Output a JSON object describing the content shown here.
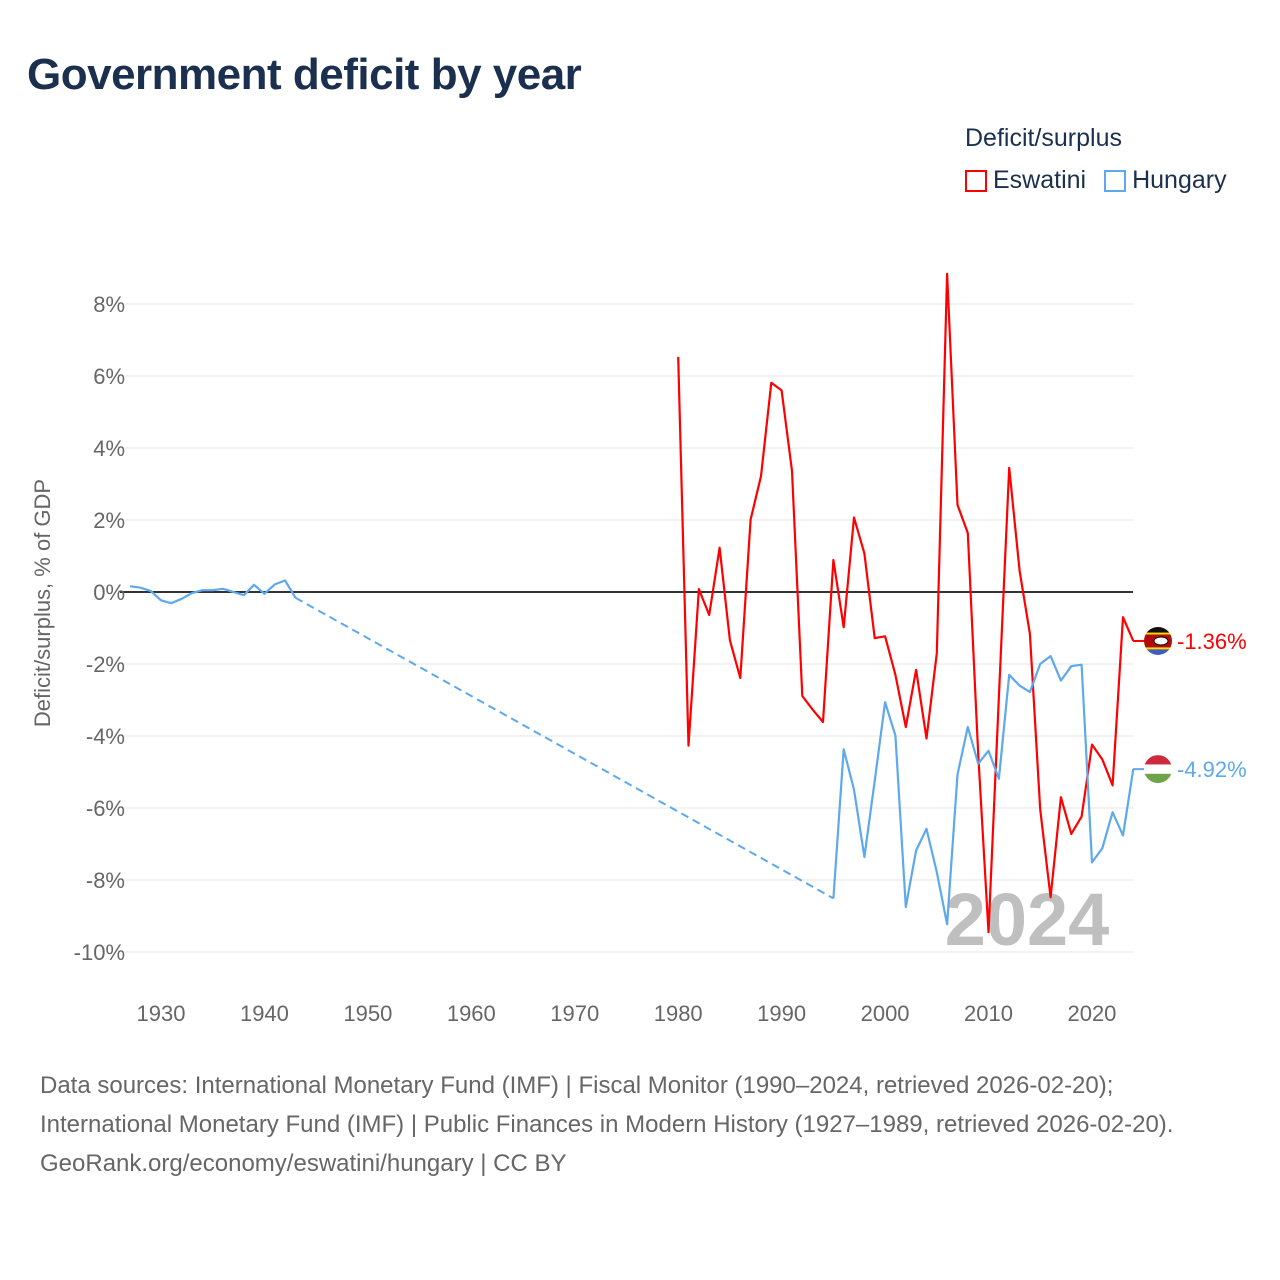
{
  "title": "Government deficit by year",
  "legend": {
    "title": "Deficit/surplus",
    "items": [
      {
        "name": "Eswatini",
        "color": "#ff0000"
      },
      {
        "name": "Hungary",
        "color": "#5ea8ee"
      }
    ]
  },
  "footer": {
    "sources": "Data sources: International Monetary Fund (IMF) | Fiscal Monitor (1990–2024, retrieved 2026-02-20); International Monetary Fund (IMF) | Public Finances in Modern History (1927–1989, retrieved 2026-02-20).",
    "link": "GeoRank.org/economy/eswatini/hungary | CC BY"
  },
  "chart_data": {
    "type": "line",
    "title": "Government deficit by year",
    "ylabel": "Deficit/surplus, % of GDP",
    "xlabel": "",
    "xlim": [
      1927,
      2024
    ],
    "ylim": [
      -10.5,
      9
    ],
    "x_ticks": [
      1930,
      1940,
      1950,
      1960,
      1970,
      1980,
      1990,
      2000,
      2010,
      2020
    ],
    "y_ticks": [
      8,
      6,
      4,
      2,
      0,
      -2,
      -4,
      -6,
      -8,
      -10
    ],
    "y_tick_labels": [
      "8%",
      "6%",
      "4%",
      "2%",
      "0%",
      "-2%",
      "-4%",
      "-6%",
      "-8%",
      "-10%"
    ],
    "grid": true,
    "legend_position": "top-right",
    "year_label": "2024",
    "series": [
      {
        "name": "Eswatini",
        "color": "#ff0000",
        "end_label": "-1.36%",
        "flag": "eswatini",
        "x": [
          1980,
          1981,
          1982,
          1983,
          1984,
          1985,
          1986,
          1987,
          1988,
          1989,
          1990,
          1991,
          1992,
          1993,
          1994,
          1995,
          1996,
          1997,
          1998,
          1999,
          2000,
          2001,
          2002,
          2003,
          2004,
          2005,
          2006,
          2007,
          2008,
          2009,
          2010,
          2011,
          2012,
          2013,
          2014,
          2015,
          2016,
          2017,
          2018,
          2019,
          2020,
          2021,
          2022,
          2023,
          2024
        ],
        "values": [
          6.53,
          -4.27,
          0.08,
          -0.64,
          1.23,
          -1.34,
          -2.39,
          2.01,
          3.22,
          5.81,
          5.6,
          3.36,
          -2.89,
          -3.27,
          -3.61,
          0.89,
          -0.98,
          2.07,
          1.07,
          -1.28,
          -1.23,
          -2.3,
          -3.75,
          -2.16,
          -4.07,
          -1.7,
          8.84,
          2.42,
          1.64,
          -4.5,
          -9.45,
          -2.9,
          3.45,
          0.59,
          -1.16,
          -6.04,
          -8.48,
          -5.7,
          -6.72,
          -6.24,
          -4.24,
          -4.65,
          -5.37,
          -0.7,
          -1.36
        ]
      },
      {
        "name": "Hungary",
        "color": "#5ea8ee",
        "end_label": "-4.92%",
        "flag": "hungary",
        "x": [
          1927,
          1928,
          1929,
          1930,
          1931,
          1932,
          1933,
          1934,
          1935,
          1936,
          1937,
          1938,
          1939,
          1940,
          1941,
          1942,
          1943,
          1995,
          1996,
          1997,
          1998,
          1999,
          2000,
          2001,
          2002,
          2003,
          2004,
          2005,
          2006,
          2007,
          2008,
          2009,
          2010,
          2011,
          2012,
          2013,
          2014,
          2015,
          2016,
          2017,
          2018,
          2019,
          2020,
          2021,
          2022,
          2023,
          2024
        ],
        "values": [
          0.16,
          0.12,
          0.03,
          -0.23,
          -0.31,
          -0.19,
          -0.03,
          0.05,
          0.05,
          0.09,
          0,
          -0.09,
          0.2,
          -0.05,
          0.21,
          0.32,
          -0.16,
          -8.51,
          -4.37,
          -5.49,
          -7.36,
          -5.25,
          -3.06,
          -3.99,
          -8.75,
          -7.18,
          -6.58,
          -7.78,
          -9.23,
          -5.07,
          -3.75,
          -4.77,
          -4.41,
          -5.19,
          -2.3,
          -2.6,
          -2.78,
          -2.0,
          -1.78,
          -2.46,
          -2.06,
          -2.02,
          -7.51,
          -7.12,
          -6.12,
          -6.76,
          -4.92
        ]
      }
    ]
  }
}
